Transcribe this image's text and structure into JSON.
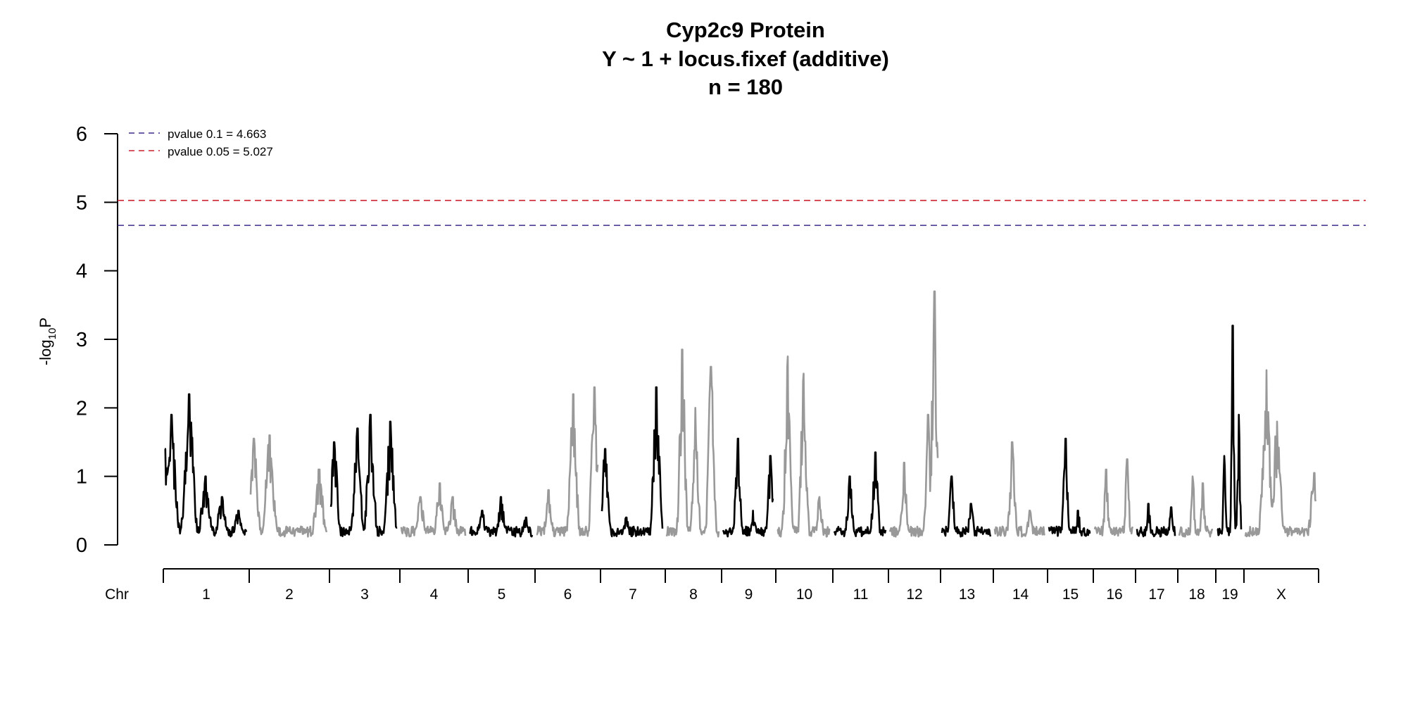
{
  "chart_data": {
    "type": "line",
    "title_lines": [
      "Cyp2c9 Protein",
      "Y ~ 1 + locus.fixef (additive)",
      "n = 180"
    ],
    "ylabel": {
      "prefix": "-log",
      "sub": "10",
      "suffix": "P"
    },
    "xlabel": "Chr",
    "ylim": [
      0,
      6
    ],
    "yticks": [
      "0",
      "1",
      "2",
      "3",
      "4",
      "5",
      "6"
    ],
    "thresholds": [
      {
        "label": "pvalue 0.1 = 4.663",
        "value": 4.663,
        "color": "#3F2A8C"
      },
      {
        "label": "pvalue 0.05 = 5.027",
        "value": 5.027,
        "color": "#CC1F2E"
      }
    ],
    "colors": {
      "odd": "#000000",
      "even": "#999999"
    },
    "chromosomes": [
      {
        "name": "1",
        "peaks": [
          [
            0.0,
            1.4
          ],
          [
            0.08,
            1.9
          ],
          [
            0.3,
            2.2
          ],
          [
            0.5,
            1.0
          ],
          [
            0.7,
            0.7
          ],
          [
            0.9,
            0.5
          ]
        ]
      },
      {
        "name": "2",
        "peaks": [
          [
            0.04,
            1.55
          ],
          [
            0.25,
            1.6
          ],
          [
            0.5,
            0.2
          ],
          [
            0.9,
            1.1
          ]
        ]
      },
      {
        "name": "3",
        "peaks": [
          [
            0.05,
            1.5
          ],
          [
            0.4,
            1.7
          ],
          [
            0.6,
            1.9
          ],
          [
            0.9,
            1.8
          ]
        ]
      },
      {
        "name": "4",
        "peaks": [
          [
            0.3,
            0.7
          ],
          [
            0.6,
            0.9
          ],
          [
            0.8,
            0.7
          ]
        ]
      },
      {
        "name": "5",
        "peaks": [
          [
            0.2,
            0.5
          ],
          [
            0.5,
            0.7
          ],
          [
            0.9,
            0.4
          ]
        ]
      },
      {
        "name": "6",
        "peaks": [
          [
            0.2,
            0.8
          ],
          [
            0.6,
            2.2
          ],
          [
            0.95,
            2.3
          ]
        ]
      },
      {
        "name": "7",
        "peaks": [
          [
            0.05,
            1.4
          ],
          [
            0.4,
            0.4
          ],
          [
            0.9,
            2.3
          ]
        ]
      },
      {
        "name": "8",
        "peaks": [
          [
            0.3,
            2.85
          ],
          [
            0.55,
            2.0
          ],
          [
            0.85,
            2.6
          ]
        ]
      },
      {
        "name": "9",
        "peaks": [
          [
            0.3,
            1.55
          ],
          [
            0.6,
            0.5
          ],
          [
            0.95,
            1.3
          ]
        ]
      },
      {
        "name": "10",
        "peaks": [
          [
            0.2,
            2.75
          ],
          [
            0.5,
            2.5
          ],
          [
            0.8,
            0.7
          ]
        ]
      },
      {
        "name": "11",
        "peaks": [
          [
            0.3,
            1.0
          ],
          [
            0.8,
            1.35
          ]
        ]
      },
      {
        "name": "12",
        "peaks": [
          [
            0.3,
            1.2
          ],
          [
            0.8,
            1.9
          ],
          [
            0.93,
            3.7
          ]
        ]
      },
      {
        "name": "13",
        "peaks": [
          [
            0.2,
            1.0
          ],
          [
            0.6,
            0.6
          ]
        ]
      },
      {
        "name": "14",
        "peaks": [
          [
            0.35,
            1.5
          ],
          [
            0.7,
            0.5
          ]
        ]
      },
      {
        "name": "15",
        "peaks": [
          [
            0.4,
            1.55
          ],
          [
            0.7,
            0.5
          ]
        ]
      },
      {
        "name": "16",
        "peaks": [
          [
            0.3,
            1.1
          ],
          [
            0.85,
            1.25
          ]
        ]
      },
      {
        "name": "17",
        "peaks": [
          [
            0.3,
            0.6
          ],
          [
            0.9,
            0.55
          ]
        ]
      },
      {
        "name": "18",
        "peaks": [
          [
            0.4,
            1.0
          ],
          [
            0.7,
            0.9
          ]
        ]
      },
      {
        "name": "19",
        "peaks": [
          [
            0.3,
            1.3
          ],
          [
            0.65,
            3.2
          ],
          [
            0.9,
            1.9
          ]
        ]
      },
      {
        "name": "X",
        "peaks": [
          [
            0.3,
            2.55
          ],
          [
            0.45,
            1.8
          ],
          [
            0.98,
            1.05
          ]
        ]
      }
    ]
  }
}
